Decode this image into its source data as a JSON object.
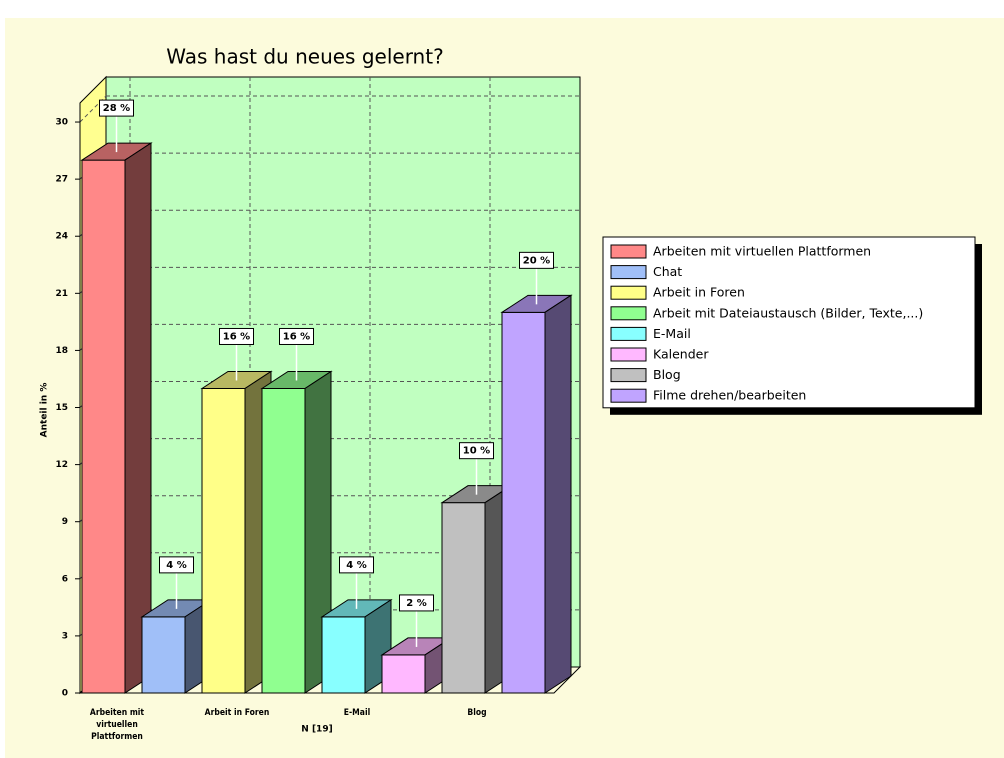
{
  "chart_data": {
    "type": "bar3d",
    "title": "Was hast du neues gelernt?",
    "y_label": "Anteil in %",
    "annotation": "N [19]",
    "categories": [
      "Arbeiten mit virtuellen Plattformen",
      null,
      "Arbeit in Foren",
      null,
      "E-Mail",
      null,
      "Blog",
      null
    ],
    "legend": [
      "Arbeiten mit virtuellen Plattformen",
      "Chat",
      "Arbeit in Foren",
      "Arbeit mit Dateiaustausch (Bilder, Texte,...)",
      "E-Mail",
      "Kalender",
      "Blog",
      "Filme drehen/bearbeiten"
    ],
    "values": [
      28,
      4,
      16,
      16,
      4,
      2,
      10,
      20
    ],
    "value_labels": [
      "28 %",
      "4 %",
      "16 %",
      "16 %",
      "4 %",
      "2 %",
      "10 %",
      "20 %"
    ],
    "colors": [
      "#ff8888",
      "#a0bff8",
      "#ffff88",
      "#90ff90",
      "#88ffff",
      "#ffb8ff",
      "#c0c0c0",
      "#c0a4ff"
    ],
    "ylim": [
      0,
      31
    ],
    "yticks": [
      0,
      3,
      6,
      9,
      12,
      15,
      18,
      21,
      24,
      27,
      30
    ],
    "grid": true,
    "legend_position": "right"
  }
}
